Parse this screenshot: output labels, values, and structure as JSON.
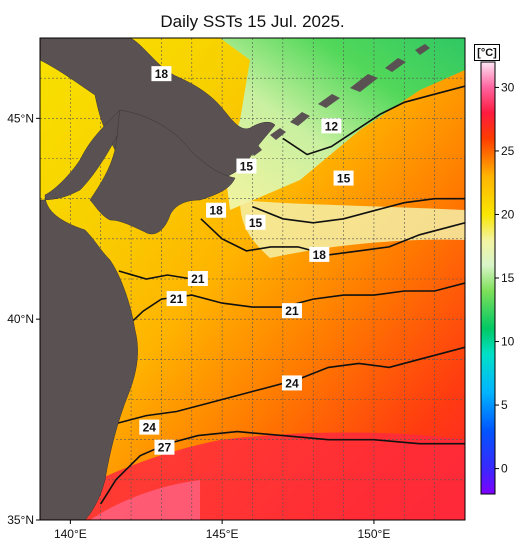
{
  "title": "Daily SSTs 15 Jul. 2025.",
  "colorbar": {
    "unit": "[°C]",
    "range": [
      -2,
      32
    ],
    "ticks": [
      0,
      5,
      10,
      15,
      20,
      25,
      30
    ],
    "stops": [
      {
        "v": -2,
        "color": "#7f00ff"
      },
      {
        "v": 0,
        "color": "#3a28ff"
      },
      {
        "v": 3,
        "color": "#0055ff"
      },
      {
        "v": 6,
        "color": "#00b4ff"
      },
      {
        "v": 9,
        "color": "#00e0c8"
      },
      {
        "v": 11,
        "color": "#00c864"
      },
      {
        "v": 14,
        "color": "#7ee05a"
      },
      {
        "v": 16,
        "color": "#d8f5c8"
      },
      {
        "v": 18,
        "color": "#f4f4a0"
      },
      {
        "v": 20,
        "color": "#f8e600"
      },
      {
        "v": 23,
        "color": "#ffb400"
      },
      {
        "v": 26,
        "color": "#ff3c00"
      },
      {
        "v": 28,
        "color": "#ff1a40"
      },
      {
        "v": 30,
        "color": "#ff64a0"
      },
      {
        "v": 32,
        "color": "#ffe6f5"
      }
    ]
  },
  "axes": {
    "lon_range": [
      139,
      153
    ],
    "lat_range": [
      35,
      47
    ],
    "lon_ticks": [
      {
        "v": 140,
        "label": "140°E"
      },
      {
        "v": 145,
        "label": "145°E"
      },
      {
        "v": 150,
        "label": "150°E"
      }
    ],
    "lat_ticks": [
      {
        "v": 35,
        "label": "35°N"
      },
      {
        "v": 40,
        "label": "40°N"
      },
      {
        "v": 45,
        "label": "45°N"
      }
    ],
    "grid_step_deg": 1
  },
  "contour_labels": [
    {
      "text": "18",
      "lon": 143.0,
      "lat": 46.1
    },
    {
      "text": "12",
      "lon": 148.6,
      "lat": 44.8
    },
    {
      "text": "15",
      "lon": 145.8,
      "lat": 43.8
    },
    {
      "text": "15",
      "lon": 149.0,
      "lat": 43.5
    },
    {
      "text": "18",
      "lon": 144.8,
      "lat": 42.7
    },
    {
      "text": "15",
      "lon": 146.1,
      "lat": 42.4
    },
    {
      "text": "18",
      "lon": 148.2,
      "lat": 41.6
    },
    {
      "text": "21",
      "lon": 144.2,
      "lat": 41.0
    },
    {
      "text": "21",
      "lon": 143.5,
      "lat": 40.5
    },
    {
      "text": "21",
      "lon": 147.3,
      "lat": 40.2
    },
    {
      "text": "24",
      "lon": 147.3,
      "lat": 38.4
    },
    {
      "text": "24",
      "lon": 142.6,
      "lat": 37.3
    },
    {
      "text": "27",
      "lon": 143.1,
      "lat": 36.8
    }
  ],
  "contours": [
    {
      "level": 24,
      "points": [
        [
          141.5,
          37.4
        ],
        [
          142.5,
          37.6
        ],
        [
          143.5,
          37.7
        ],
        [
          144.5,
          37.9
        ],
        [
          145.5,
          38.1
        ],
        [
          146.5,
          38.3
        ],
        [
          147.5,
          38.5
        ],
        [
          148.5,
          38.8
        ],
        [
          149.5,
          38.9
        ],
        [
          150.5,
          38.8
        ],
        [
          151.5,
          39.0
        ],
        [
          152.5,
          39.2
        ],
        [
          153,
          39.3
        ]
      ]
    },
    {
      "level": 27,
      "points": [
        [
          141.0,
          35.4
        ],
        [
          141.5,
          36.0
        ],
        [
          142.3,
          36.6
        ],
        [
          143.2,
          36.9
        ],
        [
          144.2,
          37.1
        ],
        [
          145.5,
          37.2
        ],
        [
          147.0,
          37.1
        ],
        [
          148.5,
          37.0
        ],
        [
          150.0,
          37.0
        ],
        [
          151.5,
          36.9
        ],
        [
          153,
          36.9
        ]
      ]
    },
    {
      "level": 21,
      "points": [
        [
          141.7,
          39.7
        ],
        [
          142.4,
          40.2
        ],
        [
          143.0,
          40.5
        ],
        [
          144.0,
          40.6
        ],
        [
          145.0,
          40.4
        ],
        [
          146.0,
          40.3
        ],
        [
          147.0,
          40.3
        ],
        [
          148.0,
          40.5
        ],
        [
          149.0,
          40.6
        ],
        [
          150.0,
          40.6
        ],
        [
          151.0,
          40.7
        ],
        [
          152.0,
          40.7
        ],
        [
          153,
          40.9
        ]
      ]
    },
    {
      "level": 21,
      "points": [
        [
          141.6,
          41.2
        ],
        [
          142.5,
          41.0
        ],
        [
          143.2,
          41.1
        ],
        [
          144.0,
          41.0
        ]
      ]
    },
    {
      "level": 18,
      "points": [
        [
          144.3,
          42.5
        ],
        [
          145.0,
          42.0
        ],
        [
          145.8,
          41.7
        ],
        [
          146.6,
          41.8
        ],
        [
          147.5,
          41.8
        ],
        [
          148.5,
          41.6
        ],
        [
          149.5,
          41.7
        ],
        [
          150.5,
          41.8
        ],
        [
          151.5,
          42.1
        ],
        [
          152.5,
          42.3
        ],
        [
          153,
          42.4
        ]
      ]
    },
    {
      "level": 15,
      "points": [
        [
          146.0,
          42.8
        ],
        [
          147.0,
          42.5
        ],
        [
          148.0,
          42.4
        ],
        [
          149.0,
          42.5
        ],
        [
          150.0,
          42.7
        ],
        [
          151.0,
          42.9
        ],
        [
          152.0,
          43.0
        ],
        [
          153,
          43.0
        ]
      ]
    },
    {
      "level": 12,
      "points": [
        [
          147.0,
          44.5
        ],
        [
          147.8,
          44.1
        ],
        [
          148.6,
          44.3
        ],
        [
          149.4,
          44.7
        ],
        [
          150.2,
          45.1
        ],
        [
          151.0,
          45.4
        ],
        [
          152.0,
          45.6
        ],
        [
          153,
          45.8
        ]
      ]
    },
    {
      "level": 18,
      "points": [
        [
          142.3,
          46.4
        ],
        [
          142.8,
          45.8
        ],
        [
          143.3,
          45.2
        ],
        [
          144.1,
          44.6
        ],
        [
          144.9,
          44.2
        ]
      ]
    }
  ]
}
